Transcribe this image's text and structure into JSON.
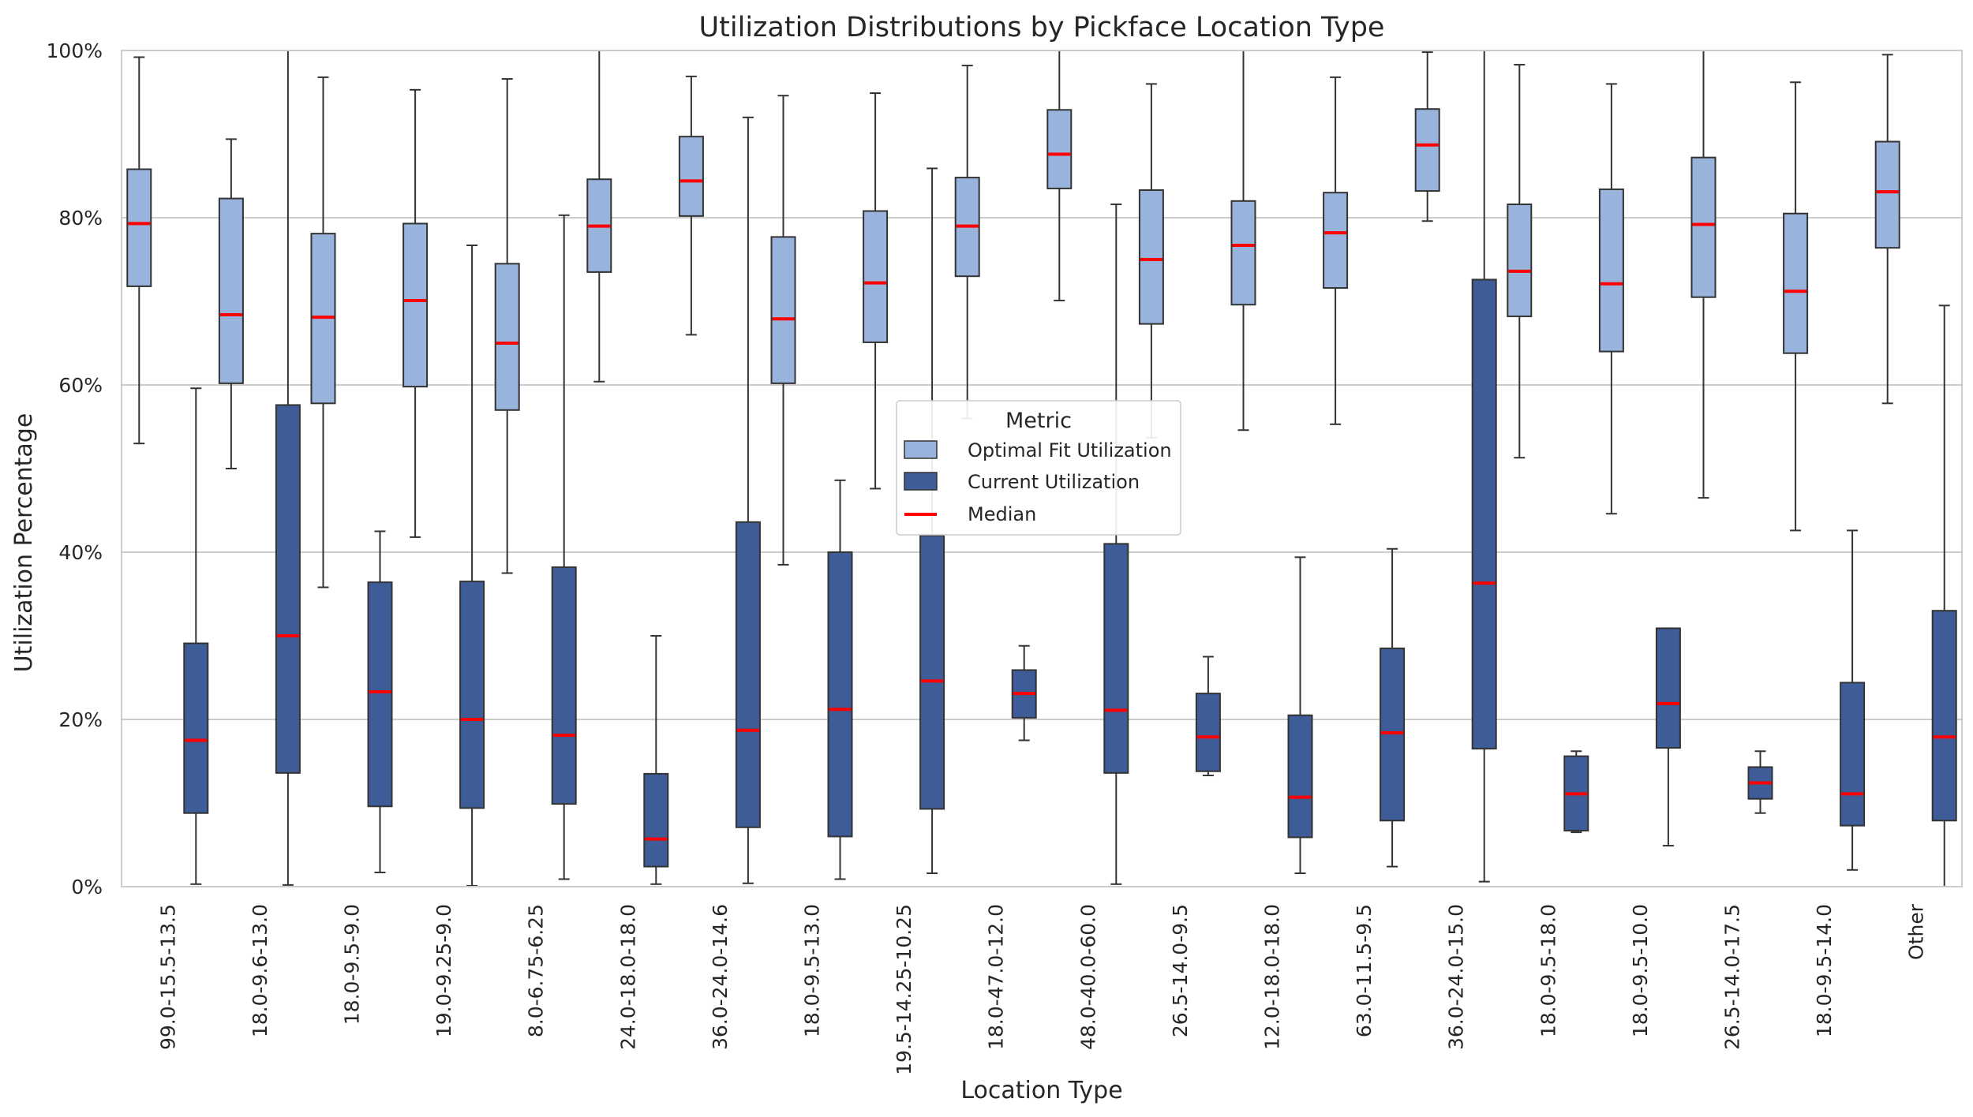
{
  "chart_data": {
    "type": "box",
    "title": "Utilization Distributions by Pickface Location Type",
    "xlabel": "Location Type",
    "ylabel": "Utilization Percentage",
    "ylim": [
      0,
      100
    ],
    "yticks": [
      0,
      20,
      40,
      60,
      80,
      100
    ],
    "ytick_labels": [
      "0%",
      "20%",
      "40%",
      "60%",
      "80%",
      "100%"
    ],
    "grid": "horizontal",
    "legend_position": "center",
    "legend": {
      "title": "Metric",
      "entries": [
        "Optimal Fit Utilization",
        "Current Utilization",
        "Median"
      ]
    },
    "colors": {
      "optimal": "#98b3dc",
      "current": "#3d5c98",
      "median": "#ff0000",
      "whisker": "#333333",
      "grid": "#cccccc",
      "frame": "#cccccc"
    },
    "categories": [
      "99.0-15.5-13.5",
      "18.0-9.6-13.0",
      "18.0-9.5-9.0",
      "19.0-9.25-9.0",
      "8.0-6.75-6.25",
      "24.0-18.0-18.0",
      "36.0-24.0-14.6",
      "18.0-9.5-13.0",
      "19.5-14.25-10.25",
      "18.0-47.0-12.0",
      "48.0-40.0-60.0",
      "26.5-14.0-9.5",
      "12.0-18.0-18.0",
      "63.0-11.5-9.5",
      "36.0-24.0-15.0",
      "18.0-9.5-18.0",
      "18.0-9.5-10.0",
      "26.5-14.0-17.5",
      "18.0-9.5-14.0",
      "Other"
    ],
    "series": [
      {
        "name": "Optimal Fit Utilization",
        "boxes": [
          {
            "min": 53,
            "q1": 71.8,
            "median": 79.3,
            "q3": 85.8,
            "max": 99.2
          },
          {
            "min": 50,
            "q1": 60.2,
            "median": 68.4,
            "q3": 82.3,
            "max": 89.4
          },
          {
            "min": 35.8,
            "q1": 57.8,
            "median": 68.1,
            "q3": 78.1,
            "max": 96.8
          },
          {
            "min": 41.8,
            "q1": 59.8,
            "median": 70.1,
            "q3": 79.3,
            "max": 95.3
          },
          {
            "min": 37.5,
            "q1": 57,
            "median": 65,
            "q3": 74.5,
            "max": 96.6
          },
          {
            "min": 60.4,
            "q1": 73.5,
            "median": 79,
            "q3": 84.6,
            "max": 100
          },
          {
            "min": 66,
            "q1": 80.2,
            "median": 84.4,
            "q3": 89.7,
            "max": 96.9
          },
          {
            "min": 38.5,
            "q1": 60.2,
            "median": 67.9,
            "q3": 77.7,
            "max": 94.6
          },
          {
            "min": 47.6,
            "q1": 65.1,
            "median": 72.2,
            "q3": 80.8,
            "max": 94.9
          },
          {
            "min": 56,
            "q1": 73,
            "median": 79,
            "q3": 84.8,
            "max": 98.2
          },
          {
            "min": 70.1,
            "q1": 83.5,
            "median": 87.6,
            "q3": 92.9,
            "max": 100
          },
          {
            "min": 53.7,
            "q1": 67.3,
            "median": 75,
            "q3": 83.3,
            "max": 96
          },
          {
            "min": 54.6,
            "q1": 69.6,
            "median": 76.7,
            "q3": 82,
            "max": 100
          },
          {
            "min": 55.3,
            "q1": 71.6,
            "median": 78.2,
            "q3": 83,
            "max": 96.8
          },
          {
            "min": 79.6,
            "q1": 83.2,
            "median": 88.7,
            "q3": 93,
            "max": 99.8
          },
          {
            "min": 51.3,
            "q1": 68.2,
            "median": 73.6,
            "q3": 81.6,
            "max": 98.3
          },
          {
            "min": 44.6,
            "q1": 64,
            "median": 72.1,
            "q3": 83.4,
            "max": 96
          },
          {
            "min": 46.5,
            "q1": 70.5,
            "median": 79.2,
            "q3": 87.2,
            "max": 100
          },
          {
            "min": 42.6,
            "q1": 63.8,
            "median": 71.2,
            "q3": 80.5,
            "max": 96.2
          },
          {
            "min": 57.8,
            "q1": 76.4,
            "median": 83.1,
            "q3": 89.1,
            "max": 99.5
          }
        ]
      },
      {
        "name": "Current Utilization",
        "boxes": [
          {
            "min": 0.3,
            "q1": 8.8,
            "median": 17.5,
            "q3": 29.1,
            "max": 59.6
          },
          {
            "min": 0.2,
            "q1": 13.6,
            "median": 30,
            "q3": 57.6,
            "max": 100
          },
          {
            "min": 1.7,
            "q1": 9.6,
            "median": 23.3,
            "q3": 36.4,
            "max": 42.5
          },
          {
            "min": 0.1,
            "q1": 9.4,
            "median": 20,
            "q3": 36.5,
            "max": 76.7
          },
          {
            "min": 0.9,
            "q1": 9.9,
            "median": 18.1,
            "q3": 38.2,
            "max": 80.3
          },
          {
            "min": 0.3,
            "q1": 2.4,
            "median": 5.7,
            "q3": 13.5,
            "max": 30
          },
          {
            "min": 0.4,
            "q1": 7.1,
            "median": 18.7,
            "q3": 43.6,
            "max": 92
          },
          {
            "min": 0.9,
            "q1": 6,
            "median": 21.2,
            "q3": 40,
            "max": 48.6
          },
          {
            "min": 1.6,
            "q1": 9.3,
            "median": 24.6,
            "q3": 42,
            "max": 85.9
          },
          {
            "min": 17.5,
            "q1": 20.2,
            "median": 23.1,
            "q3": 25.9,
            "max": 28.8
          },
          {
            "min": 0.3,
            "q1": 13.6,
            "median": 21.1,
            "q3": 41,
            "max": 81.6
          },
          {
            "min": 13.3,
            "q1": 13.8,
            "median": 17.9,
            "q3": 23.1,
            "max": 27.5
          },
          {
            "min": 1.6,
            "q1": 5.9,
            "median": 10.7,
            "q3": 20.5,
            "max": 39.4
          },
          {
            "min": 2.4,
            "q1": 7.9,
            "median": 18.4,
            "q3": 28.5,
            "max": 40.4
          },
          {
            "min": 0.6,
            "q1": 16.5,
            "median": 36.3,
            "q3": 72.6,
            "max": 100
          },
          {
            "min": 6.5,
            "q1": 6.7,
            "median": 11.1,
            "q3": 15.6,
            "max": 16.2
          },
          {
            "min": 4.9,
            "q1": 16.6,
            "median": 21.9,
            "q3": 30.9,
            "max": 30.9
          },
          {
            "min": 8.8,
            "q1": 10.5,
            "median": 12.4,
            "q3": 14.3,
            "max": 16.2
          },
          {
            "min": 2,
            "q1": 7.3,
            "median": 11.1,
            "q3": 24.4,
            "max": 42.6
          },
          {
            "min": 0,
            "q1": 7.9,
            "median": 17.9,
            "q3": 33,
            "max": 69.5
          }
        ]
      }
    ]
  }
}
